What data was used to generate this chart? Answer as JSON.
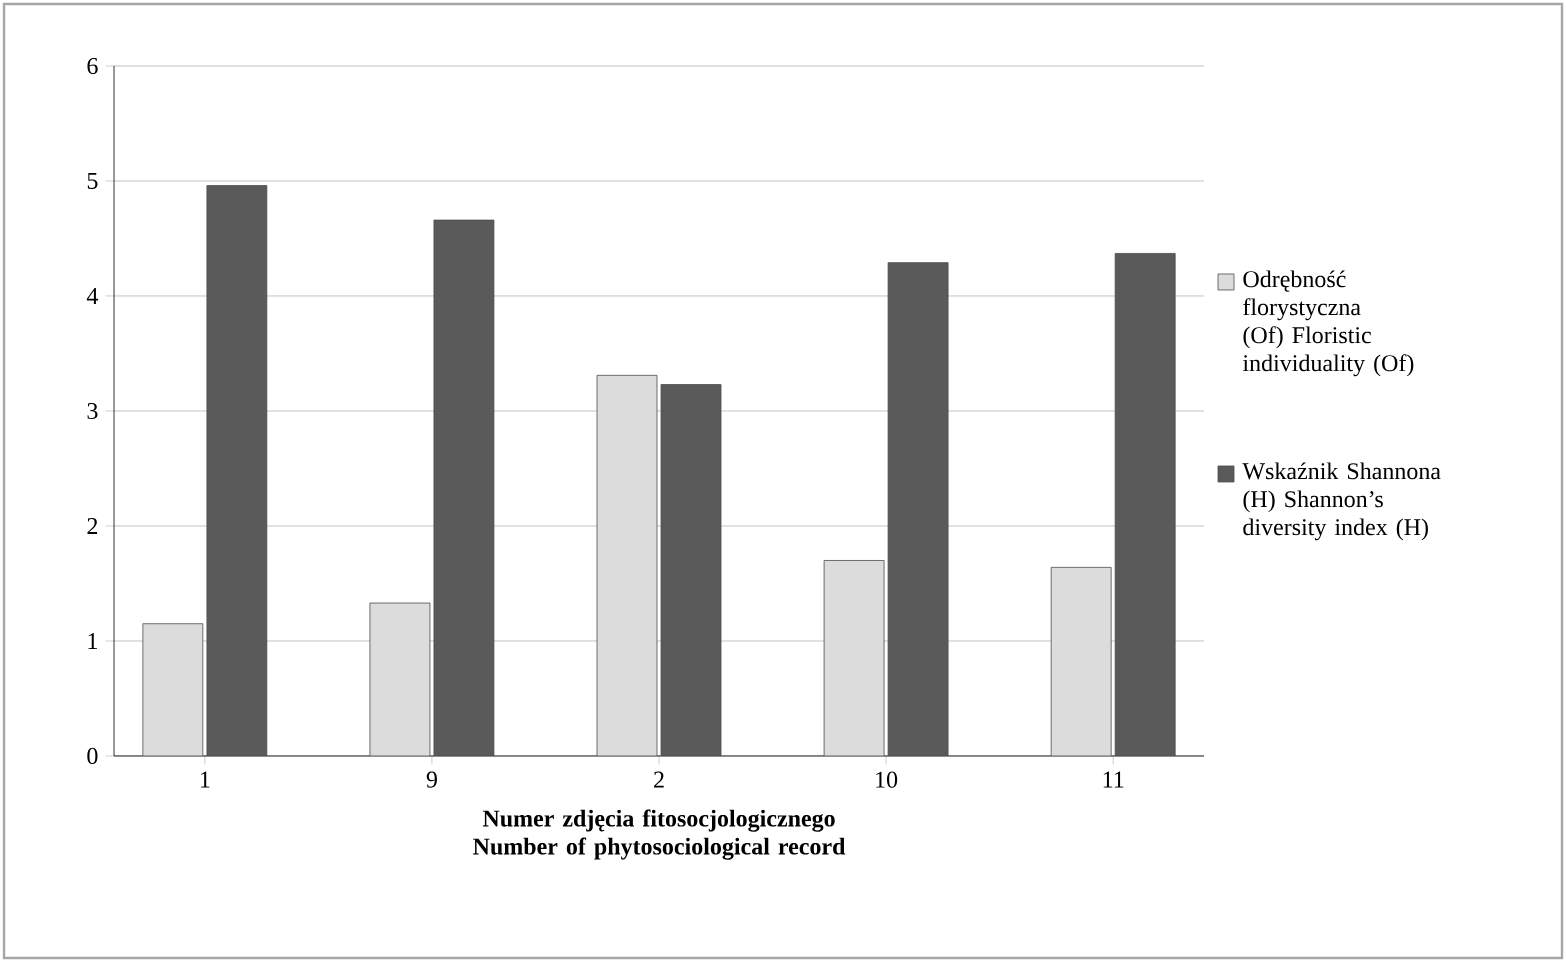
{
  "chart_data": {
    "type": "bar",
    "xlabel": "Numer zdjęcia fitosocjologicznego\nNumber of phytosociological record",
    "categories": [
      "1",
      "9",
      "2",
      "10",
      "11"
    ],
    "series": [
      {
        "name": "Odrębność florystyczna (Of) Floristic individuality (Of)",
        "color": "#dcdcdc",
        "values": [
          1.15,
          1.33,
          3.31,
          1.7,
          1.64
        ]
      },
      {
        "name": "Wskaźnik Shannona (H) Shannon’s diversity index (H)",
        "color": "#5a5a5a",
        "values": [
          4.96,
          4.66,
          3.23,
          4.29,
          4.37
        ]
      }
    ],
    "ylim": [
      0,
      6
    ],
    "yticks": [
      0,
      1,
      2,
      3,
      4,
      5,
      6
    ],
    "grid": "y",
    "legend": "right"
  }
}
